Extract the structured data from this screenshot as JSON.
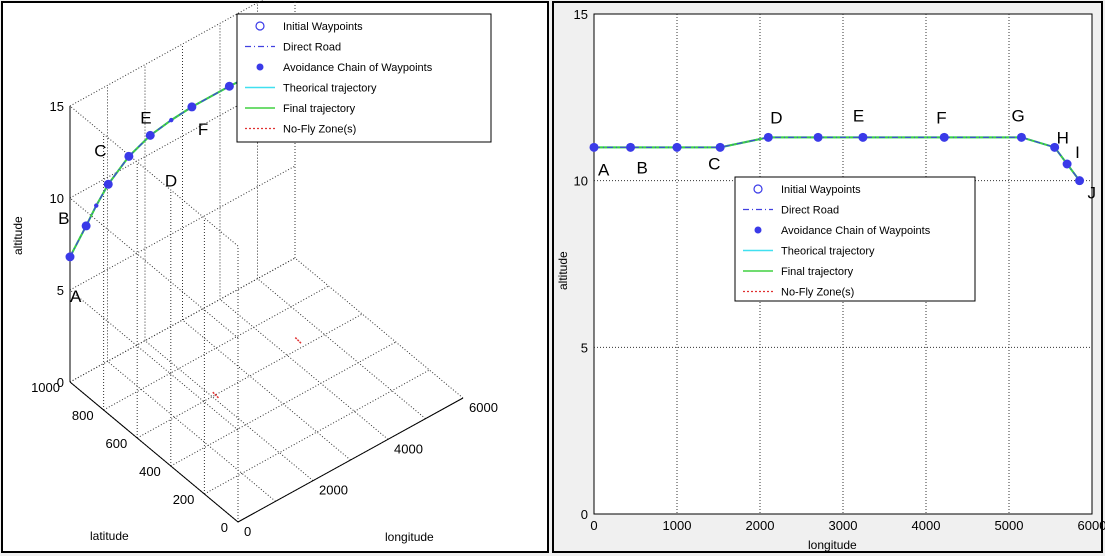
{
  "chart_data": [
    {
      "type": "line",
      "view": "3d",
      "xlabel": "longitude",
      "ylabel": "latitude",
      "zlabel": "altitude",
      "xlim": [
        0,
        6000
      ],
      "ylim": [
        0,
        1000
      ],
      "zlim": [
        0,
        15
      ],
      "xticks": [
        "0",
        "2000",
        "4000",
        "6000"
      ],
      "yticks": [
        "0",
        "200",
        "400",
        "600",
        "800",
        "1000"
      ],
      "zticks": [
        "0",
        "5",
        "10",
        "15"
      ],
      "grid": true,
      "legend_position": "top",
      "legend": [
        "Initial Waypoints",
        "Direct Road",
        "Avoidance Chain of Waypoints",
        "Theorical trajectory",
        "Final trajectory",
        "No-Fly Zone(s)"
      ],
      "point_labels": [
        "A",
        "B",
        "C",
        "D",
        "E",
        "F",
        "G",
        "H",
        "I",
        "J"
      ],
      "series": [
        {
          "name": "Initial Waypoints",
          "x": [
            0,
            430,
            1020,
            1570,
            2140,
            3250,
            4250,
            5160,
            5500,
            5700,
            5870
          ],
          "y": [
            1000,
            1000,
            1000,
            1000,
            1000,
            1000,
            1000,
            1000,
            1000,
            1000,
            1000
          ],
          "z": [
            6.8,
            8.0,
            9.6,
            10.5,
            11.0,
            11.3,
            11.3,
            11.2,
            10.5,
            9.9,
            8.6
          ]
        },
        {
          "name": "Avoidance Chain of Waypoints",
          "x": [
            0,
            430,
            700,
            1020,
            1570,
            2140,
            2700,
            3250,
            4250,
            5160,
            5500,
            5700,
            5870
          ],
          "y": [
            1000,
            1000,
            1000,
            1000,
            1000,
            1000,
            1000,
            1000,
            1000,
            1000,
            1000,
            1000,
            1000
          ],
          "z": [
            6.8,
            8.0,
            8.8,
            9.6,
            10.5,
            11.0,
            11.2,
            11.3,
            11.3,
            11.2,
            10.5,
            9.9,
            8.6
          ]
        },
        {
          "name": "No-Fly Zone(s)",
          "x": [
            1200,
            3400
          ],
          "y": [
            400,
            400
          ],
          "z": [
            2.5,
            3.0
          ]
        }
      ]
    },
    {
      "type": "line",
      "view": "2d",
      "xlabel": "longitude",
      "ylabel": "altitude",
      "xlim": [
        0,
        6000
      ],
      "ylim": [
        0,
        15
      ],
      "xticks": [
        "0",
        "1000",
        "2000",
        "3000",
        "4000",
        "5000",
        "6000"
      ],
      "yticks": [
        "0",
        "5",
        "10",
        "15"
      ],
      "grid": true,
      "legend_position": "center",
      "legend": [
        "Initial Waypoints",
        "Direct Road",
        "Avoidance Chain of Waypoints",
        "Theorical trajectory",
        "Final trajectory",
        "No-Fly Zone(s)"
      ],
      "point_labels": [
        "A",
        "B",
        "C",
        "D",
        "E",
        "F",
        "G",
        "H",
        "I",
        "J"
      ],
      "series": [
        {
          "name": "Avoidance Chain of Waypoints",
          "x": [
            0,
            440,
            1000,
            1520,
            2100,
            2700,
            3240,
            4220,
            5150,
            5550,
            5700,
            5850
          ],
          "y": [
            11,
            11,
            11,
            11,
            11.3,
            11.3,
            11.3,
            11.3,
            11.3,
            11,
            10.5,
            10
          ]
        }
      ]
    }
  ],
  "colors": {
    "background": "#f0f0f0",
    "plot_bg": "#ffffff",
    "grid": "#333333",
    "marker": "#3a3ae8",
    "direct_road": "#4040e0",
    "theorical": "#40e0f0",
    "final": "#40d040",
    "nofly": "#e03030"
  }
}
